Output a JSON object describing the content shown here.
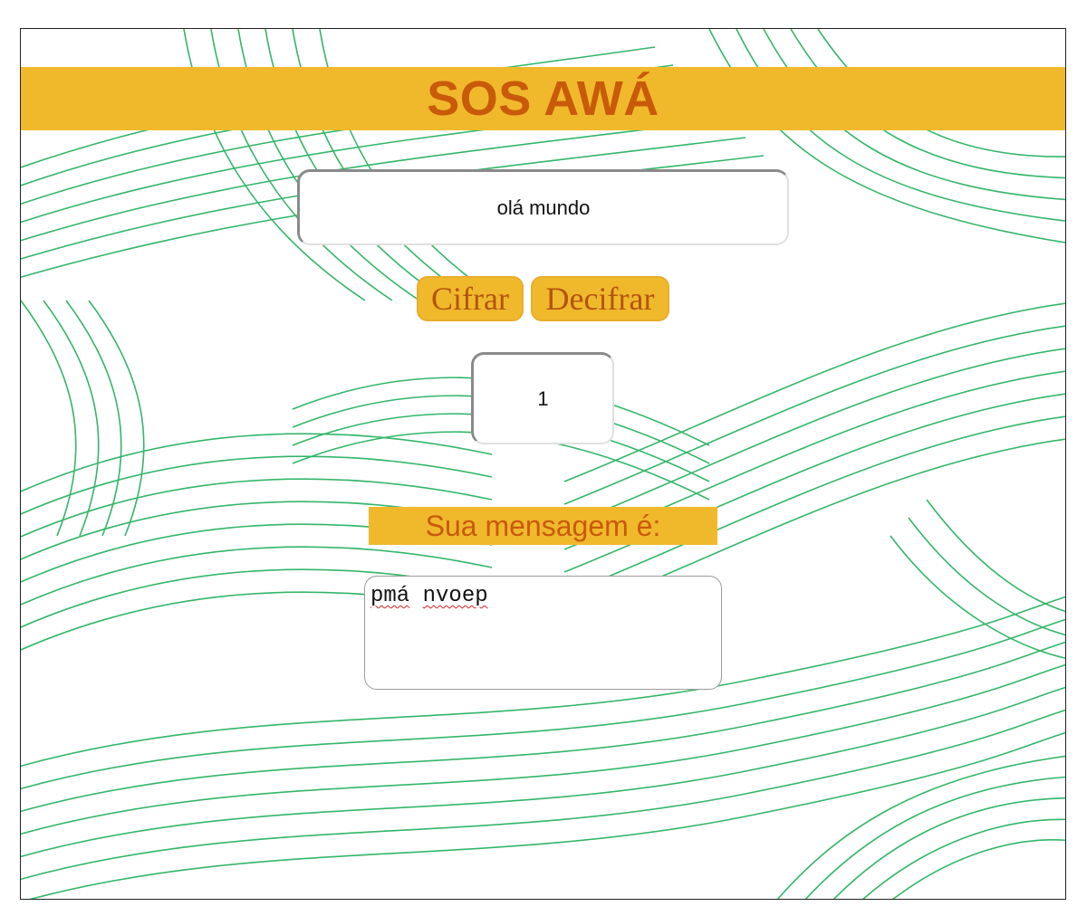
{
  "header": {
    "title": "SOS AWÁ"
  },
  "input": {
    "message_value": "olá mundo"
  },
  "buttons": {
    "cipher_label": "Cifrar",
    "decipher_label": "Decifrar"
  },
  "offset": {
    "value": "1"
  },
  "result": {
    "label": "Sua mensagem é:",
    "words": [
      "pmá",
      "nvoep"
    ]
  },
  "colors": {
    "accent": "#f0b92c",
    "title_text": "#c85a0a",
    "pattern_stroke": "#1fae5a",
    "background": "#ffffff"
  }
}
